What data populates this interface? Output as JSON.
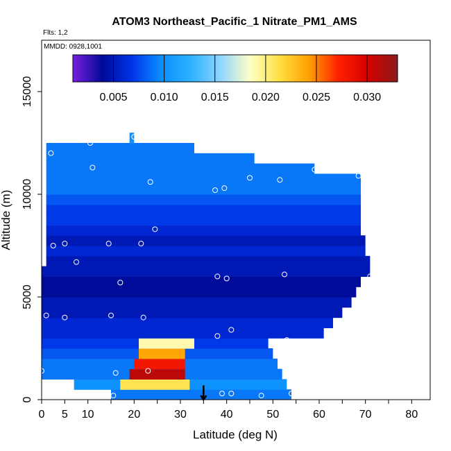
{
  "chart_data": {
    "type": "heatmap",
    "title": "ATOM3 Northeast_Pacific_1 Nitrate_PM1_AMS",
    "annotations": [
      "Flts: 1,2",
      "MMDD: 0928,1001"
    ],
    "xlabel": "Latitude (deg N)",
    "ylabel": "Altitude (m)",
    "xlim": [
      0,
      84
    ],
    "ylim": [
      0,
      17500
    ],
    "x_ticks": [
      "0",
      "5",
      "10",
      "20",
      "30",
      "40",
      "50",
      "60",
      "70",
      "80"
    ],
    "y_ticks": [
      "0",
      "5000",
      "10000",
      "15000"
    ],
    "colorbar": {
      "range": [
        0.001,
        0.033
      ],
      "tick_labels": [
        "0.005",
        "0.010",
        "0.015",
        "0.020",
        "0.025",
        "0.030"
      ],
      "tick_values": [
        0.005,
        0.01,
        0.015,
        0.02,
        0.025,
        0.03
      ],
      "colors": [
        "#7a1fe0",
        "#000a96",
        "#0033e8",
        "#0b8fff",
        "#2db2ff",
        "#8fd4ff",
        "#ffffc8",
        "#ffe040",
        "#ffa000",
        "#ff2000",
        "#d40000",
        "#8b1a1a"
      ]
    },
    "bands": [
      {
        "alt": [
          0,
          500
        ],
        "lat": [
          15,
          54
        ],
        "value": 0.009
      },
      {
        "alt": [
          500,
          1000
        ],
        "lat": [
          7,
          53
        ],
        "value": 0.01,
        "hotspot": {
          "lat": [
            17,
            32
          ],
          "value": 0.021
        }
      },
      {
        "alt": [
          1000,
          1500
        ],
        "lat": [
          0,
          52
        ],
        "value": 0.009,
        "hotspot": {
          "lat": [
            19,
            31
          ],
          "value": 0.031
        }
      },
      {
        "alt": [
          1500,
          2000
        ],
        "lat": [
          0,
          51
        ],
        "value": 0.009,
        "hotspot": {
          "lat": [
            20,
            31
          ],
          "value": 0.028
        }
      },
      {
        "alt": [
          2000,
          2500
        ],
        "lat": [
          0,
          50
        ],
        "value": 0.008,
        "hotspot": {
          "lat": [
            21,
            31
          ],
          "value": 0.024
        }
      },
      {
        "alt": [
          2500,
          3000
        ],
        "lat": [
          0,
          49
        ],
        "value": 0.007,
        "hotspot": {
          "lat": [
            21,
            33
          ],
          "value": 0.019
        }
      },
      {
        "alt": [
          3000,
          3500
        ],
        "lat": [
          0,
          61
        ],
        "value": 0.006
      },
      {
        "alt": [
          3500,
          4000
        ],
        "lat": [
          0,
          63
        ],
        "value": 0.006
      },
      {
        "alt": [
          4000,
          4500
        ],
        "lat": [
          0,
          65
        ],
        "value": 0.005
      },
      {
        "alt": [
          4500,
          5000
        ],
        "lat": [
          0,
          67
        ],
        "value": 0.005
      },
      {
        "alt": [
          5000,
          5500
        ],
        "lat": [
          0,
          68
        ],
        "value": 0.004
      },
      {
        "alt": [
          5500,
          6000
        ],
        "lat": [
          0,
          69
        ],
        "value": 0.004
      },
      {
        "alt": [
          6000,
          6500
        ],
        "lat": [
          0,
          71
        ],
        "value": 0.005
      },
      {
        "alt": [
          6500,
          7000
        ],
        "lat": [
          1,
          71
        ],
        "value": 0.005
      },
      {
        "alt": [
          7000,
          7500
        ],
        "lat": [
          1,
          70
        ],
        "value": 0.006
      },
      {
        "alt": [
          7500,
          8000
        ],
        "lat": [
          1,
          70
        ],
        "value": 0.005
      },
      {
        "alt": [
          8000,
          8500
        ],
        "lat": [
          1,
          69
        ],
        "value": 0.006
      },
      {
        "alt": [
          8500,
          9000
        ],
        "lat": [
          1,
          69
        ],
        "value": 0.007
      },
      {
        "alt": [
          9000,
          9500
        ],
        "lat": [
          1,
          69
        ],
        "value": 0.007
      },
      {
        "alt": [
          9500,
          10000
        ],
        "lat": [
          1,
          69
        ],
        "value": 0.008
      },
      {
        "alt": [
          10000,
          10500
        ],
        "lat": [
          1,
          69
        ],
        "value": 0.009
      },
      {
        "alt": [
          10500,
          11000
        ],
        "lat": [
          1,
          69
        ],
        "value": 0.009
      },
      {
        "alt": [
          11000,
          11500
        ],
        "lat": [
          1,
          59
        ],
        "value": 0.009
      },
      {
        "alt": [
          11500,
          12000
        ],
        "lat": [
          1,
          46
        ],
        "value": 0.009
      },
      {
        "alt": [
          12000,
          12500
        ],
        "lat": [
          1,
          33
        ],
        "value": 0.009
      },
      {
        "alt": [
          12500,
          13000
        ],
        "lat": [
          19,
          20
        ],
        "value": 0.01
      }
    ],
    "flight_points": [
      [
        0,
        1400
      ],
      [
        1,
        4100
      ],
      [
        2,
        12000
      ],
      [
        2.5,
        7500
      ],
      [
        5,
        4000
      ],
      [
        5,
        7600
      ],
      [
        7.5,
        6700
      ],
      [
        10.5,
        12500
      ],
      [
        11,
        11300
      ],
      [
        14.5,
        7600
      ],
      [
        15,
        4100
      ],
      [
        15.5,
        200
      ],
      [
        16,
        1300
      ],
      [
        17,
        5700
      ],
      [
        20,
        12800
      ],
      [
        21.5,
        7600
      ],
      [
        22,
        4000
      ],
      [
        23,
        1400
      ],
      [
        23.5,
        10600
      ],
      [
        24.5,
        8300
      ],
      [
        37.5,
        10200
      ],
      [
        38,
        6000
      ],
      [
        38,
        3100
      ],
      [
        39,
        300
      ],
      [
        39.5,
        10300
      ],
      [
        40,
        5900
      ],
      [
        41,
        300
      ],
      [
        41,
        3400
      ],
      [
        45,
        10800
      ],
      [
        47.5,
        200
      ],
      [
        51.5,
        10700
      ],
      [
        52.5,
        6100
      ],
      [
        53,
        2900
      ],
      [
        54,
        300
      ],
      [
        59,
        11200
      ],
      [
        68.5,
        10900
      ],
      [
        71,
        6000
      ]
    ],
    "arrow": {
      "lat": 35,
      "alt_from": 700,
      "alt_to": 0
    }
  }
}
